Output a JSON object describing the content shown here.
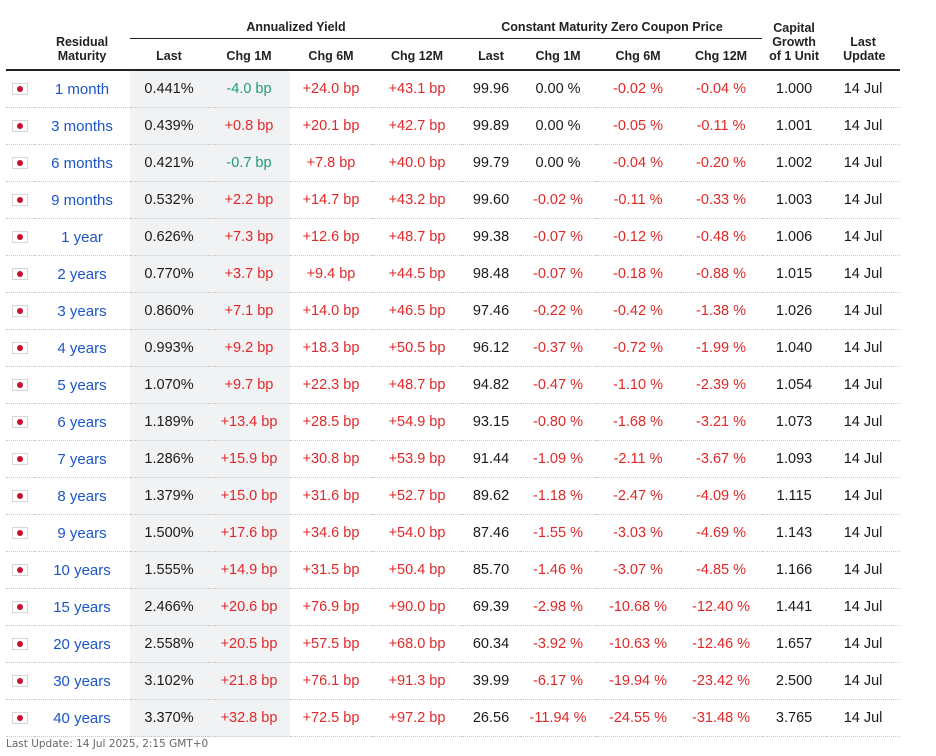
{
  "headers": {
    "residual_maturity": "Residual Maturity",
    "annualized_yield": "Annualized Yield",
    "zero_coupon_price": "Constant Maturity Zero Coupon Price",
    "capital_growth": "Capital Growth of 1 Unit",
    "last_update": "Last Update",
    "last": "Last",
    "chg_1m": "Chg 1M",
    "chg_6m": "Chg 6M",
    "chg_12m": "Chg 12M"
  },
  "flag_icon": "japan-flag-icon",
  "colors": {
    "link": "#1a55c8",
    "negative": "#e02828",
    "positive_green": "#1f9a78",
    "shade": "#f1f2f4"
  },
  "rows": [
    {
      "maturity": "1 month",
      "yield_last": "0.441%",
      "yield_chg_1m": "-4.0 bp",
      "yield_chg_6m": "+24.0 bp",
      "yield_chg_12m": "+43.1 bp",
      "price_last": "99.96",
      "price_chg_1m": "0.00 %",
      "price_chg_6m": "-0.02 %",
      "price_chg_12m": "-0.04 %",
      "capital_growth": "1.000",
      "last_update": "14 Jul"
    },
    {
      "maturity": "3 months",
      "yield_last": "0.439%",
      "yield_chg_1m": "+0.8 bp",
      "yield_chg_6m": "+20.1 bp",
      "yield_chg_12m": "+42.7 bp",
      "price_last": "99.89",
      "price_chg_1m": "0.00 %",
      "price_chg_6m": "-0.05 %",
      "price_chg_12m": "-0.11 %",
      "capital_growth": "1.001",
      "last_update": "14 Jul"
    },
    {
      "maturity": "6 months",
      "yield_last": "0.421%",
      "yield_chg_1m": "-0.7 bp",
      "yield_chg_6m": "+7.8 bp",
      "yield_chg_12m": "+40.0 bp",
      "price_last": "99.79",
      "price_chg_1m": "0.00 %",
      "price_chg_6m": "-0.04 %",
      "price_chg_12m": "-0.20 %",
      "capital_growth": "1.002",
      "last_update": "14 Jul"
    },
    {
      "maturity": "9 months",
      "yield_last": "0.532%",
      "yield_chg_1m": "+2.2 bp",
      "yield_chg_6m": "+14.7 bp",
      "yield_chg_12m": "+43.2 bp",
      "price_last": "99.60",
      "price_chg_1m": "-0.02 %",
      "price_chg_6m": "-0.11 %",
      "price_chg_12m": "-0.33 %",
      "capital_growth": "1.003",
      "last_update": "14 Jul"
    },
    {
      "maturity": "1 year",
      "yield_last": "0.626%",
      "yield_chg_1m": "+7.3 bp",
      "yield_chg_6m": "+12.6 bp",
      "yield_chg_12m": "+48.7 bp",
      "price_last": "99.38",
      "price_chg_1m": "-0.07 %",
      "price_chg_6m": "-0.12 %",
      "price_chg_12m": "-0.48 %",
      "capital_growth": "1.006",
      "last_update": "14 Jul"
    },
    {
      "maturity": "2 years",
      "yield_last": "0.770%",
      "yield_chg_1m": "+3.7 bp",
      "yield_chg_6m": "+9.4 bp",
      "yield_chg_12m": "+44.5 bp",
      "price_last": "98.48",
      "price_chg_1m": "-0.07 %",
      "price_chg_6m": "-0.18 %",
      "price_chg_12m": "-0.88 %",
      "capital_growth": "1.015",
      "last_update": "14 Jul"
    },
    {
      "maturity": "3 years",
      "yield_last": "0.860%",
      "yield_chg_1m": "+7.1 bp",
      "yield_chg_6m": "+14.0 bp",
      "yield_chg_12m": "+46.5 bp",
      "price_last": "97.46",
      "price_chg_1m": "-0.22 %",
      "price_chg_6m": "-0.42 %",
      "price_chg_12m": "-1.38 %",
      "capital_growth": "1.026",
      "last_update": "14 Jul"
    },
    {
      "maturity": "4 years",
      "yield_last": "0.993%",
      "yield_chg_1m": "+9.2 bp",
      "yield_chg_6m": "+18.3 bp",
      "yield_chg_12m": "+50.5 bp",
      "price_last": "96.12",
      "price_chg_1m": "-0.37 %",
      "price_chg_6m": "-0.72 %",
      "price_chg_12m": "-1.99 %",
      "capital_growth": "1.040",
      "last_update": "14 Jul"
    },
    {
      "maturity": "5 years",
      "yield_last": "1.070%",
      "yield_chg_1m": "+9.7 bp",
      "yield_chg_6m": "+22.3 bp",
      "yield_chg_12m": "+48.7 bp",
      "price_last": "94.82",
      "price_chg_1m": "-0.47 %",
      "price_chg_6m": "-1.10 %",
      "price_chg_12m": "-2.39 %",
      "capital_growth": "1.054",
      "last_update": "14 Jul"
    },
    {
      "maturity": "6 years",
      "yield_last": "1.189%",
      "yield_chg_1m": "+13.4 bp",
      "yield_chg_6m": "+28.5 bp",
      "yield_chg_12m": "+54.9 bp",
      "price_last": "93.15",
      "price_chg_1m": "-0.80 %",
      "price_chg_6m": "-1.68 %",
      "price_chg_12m": "-3.21 %",
      "capital_growth": "1.073",
      "last_update": "14 Jul"
    },
    {
      "maturity": "7 years",
      "yield_last": "1.286%",
      "yield_chg_1m": "+15.9 bp",
      "yield_chg_6m": "+30.8 bp",
      "yield_chg_12m": "+53.9 bp",
      "price_last": "91.44",
      "price_chg_1m": "-1.09 %",
      "price_chg_6m": "-2.11 %",
      "price_chg_12m": "-3.67 %",
      "capital_growth": "1.093",
      "last_update": "14 Jul"
    },
    {
      "maturity": "8 years",
      "yield_last": "1.379%",
      "yield_chg_1m": "+15.0 bp",
      "yield_chg_6m": "+31.6 bp",
      "yield_chg_12m": "+52.7 bp",
      "price_last": "89.62",
      "price_chg_1m": "-1.18 %",
      "price_chg_6m": "-2.47 %",
      "price_chg_12m": "-4.09 %",
      "capital_growth": "1.115",
      "last_update": "14 Jul"
    },
    {
      "maturity": "9 years",
      "yield_last": "1.500%",
      "yield_chg_1m": "+17.6 bp",
      "yield_chg_6m": "+34.6 bp",
      "yield_chg_12m": "+54.0 bp",
      "price_last": "87.46",
      "price_chg_1m": "-1.55 %",
      "price_chg_6m": "-3.03 %",
      "price_chg_12m": "-4.69 %",
      "capital_growth": "1.143",
      "last_update": "14 Jul"
    },
    {
      "maturity": "10 years",
      "yield_last": "1.555%",
      "yield_chg_1m": "+14.9 bp",
      "yield_chg_6m": "+31.5 bp",
      "yield_chg_12m": "+50.4 bp",
      "price_last": "85.70",
      "price_chg_1m": "-1.46 %",
      "price_chg_6m": "-3.07 %",
      "price_chg_12m": "-4.85 %",
      "capital_growth": "1.166",
      "last_update": "14 Jul"
    },
    {
      "maturity": "15 years",
      "yield_last": "2.466%",
      "yield_chg_1m": "+20.6 bp",
      "yield_chg_6m": "+76.9 bp",
      "yield_chg_12m": "+90.0 bp",
      "price_last": "69.39",
      "price_chg_1m": "-2.98 %",
      "price_chg_6m": "-10.68 %",
      "price_chg_12m": "-12.40 %",
      "capital_growth": "1.441",
      "last_update": "14 Jul"
    },
    {
      "maturity": "20 years",
      "yield_last": "2.558%",
      "yield_chg_1m": "+20.5 bp",
      "yield_chg_6m": "+57.5 bp",
      "yield_chg_12m": "+68.0 bp",
      "price_last": "60.34",
      "price_chg_1m": "-3.92 %",
      "price_chg_6m": "-10.63 %",
      "price_chg_12m": "-12.46 %",
      "capital_growth": "1.657",
      "last_update": "14 Jul"
    },
    {
      "maturity": "30 years",
      "yield_last": "3.102%",
      "yield_chg_1m": "+21.8 bp",
      "yield_chg_6m": "+76.1 bp",
      "yield_chg_12m": "+91.3 bp",
      "price_last": "39.99",
      "price_chg_1m": "-6.17 %",
      "price_chg_6m": "-19.94 %",
      "price_chg_12m": "-23.42 %",
      "capital_growth": "2.500",
      "last_update": "14 Jul"
    },
    {
      "maturity": "40 years",
      "yield_last": "3.370%",
      "yield_chg_1m": "+32.8 bp",
      "yield_chg_6m": "+72.5 bp",
      "yield_chg_12m": "+97.2 bp",
      "price_last": "26.56",
      "price_chg_1m": "-11.94 %",
      "price_chg_6m": "-24.55 %",
      "price_chg_12m": "-31.48 %",
      "capital_growth": "3.765",
      "last_update": "14 Jul"
    }
  ],
  "footer": "Last Update: 14 Jul 2025, 2:15 GMT+0"
}
